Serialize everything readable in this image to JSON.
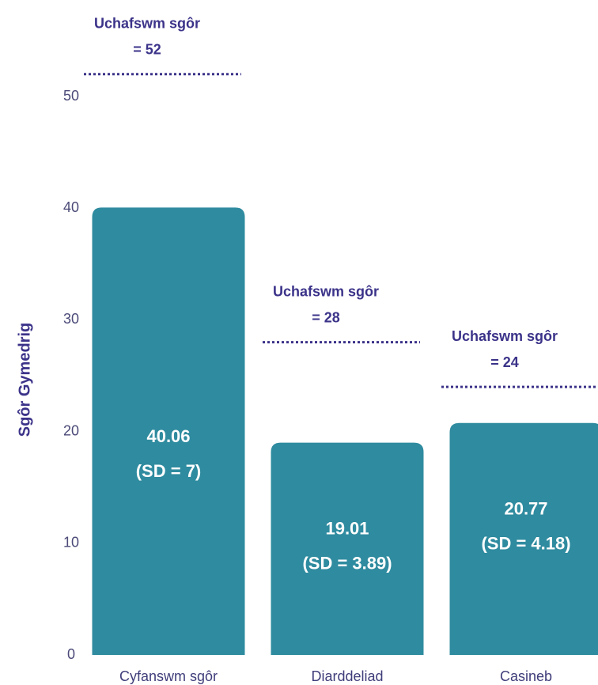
{
  "chart_data": {
    "type": "bar",
    "y_axis_label": "Sgôr Gymedrig",
    "categories": [
      "Cyfanswm sgôr",
      "Diarddeliad",
      "Casineb"
    ],
    "values": [
      40.06,
      19.01,
      20.77
    ],
    "sd_labels": [
      "(SD = 7)",
      "(SD = 3.89)",
      "(SD = 4.18)"
    ],
    "color": "#2f8b9f",
    "max_label": "Uchafswm sgôr",
    "max_values": [
      52,
      28,
      24
    ],
    "max_value_labels": [
      "= 52",
      "= 28",
      "= 24"
    ],
    "ylim": [
      0,
      50
    ],
    "yticks": [
      0,
      10,
      20,
      30,
      40,
      50
    ],
    "grid": false
  }
}
